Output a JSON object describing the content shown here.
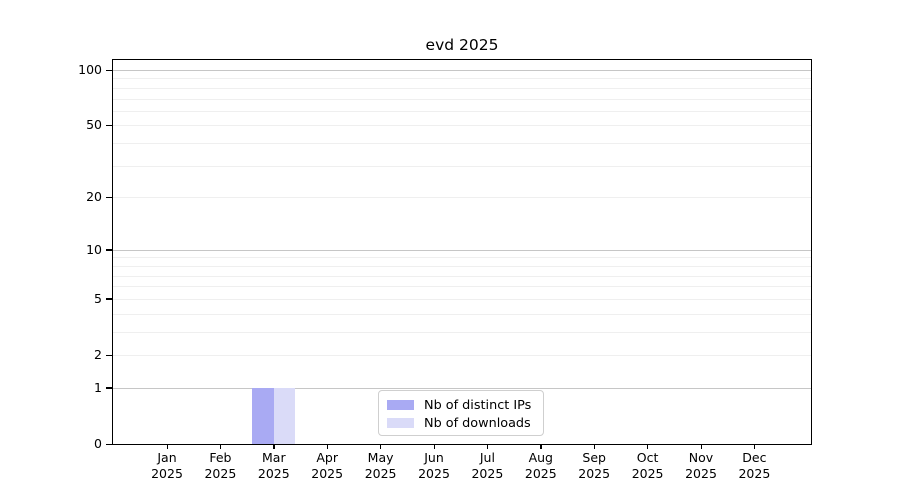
{
  "chart_data": {
    "type": "bar",
    "title": "evd 2025",
    "categories": [
      "Jan 2025",
      "Feb 2025",
      "Mar 2025",
      "Apr 2025",
      "May 2025",
      "Jun 2025",
      "Jul 2025",
      "Aug 2025",
      "Sep 2025",
      "Oct 2025",
      "Nov 2025",
      "Dec 2025"
    ],
    "series": [
      {
        "name": "Nb of distinct IPs",
        "color": "#a9aaf3",
        "values": [
          0,
          0,
          1,
          0,
          0,
          0,
          0,
          0,
          0,
          0,
          0,
          0
        ]
      },
      {
        "name": "Nb of downloads",
        "color": "#dadbf8",
        "values": [
          0,
          0,
          1,
          0,
          0,
          0,
          0,
          0,
          0,
          0,
          0,
          0
        ]
      }
    ],
    "xlabel": "",
    "ylabel": "",
    "yscale": "log1p",
    "yticks": [
      100,
      50,
      20,
      10,
      5,
      2,
      1,
      0
    ],
    "ylim": [
      0,
      113
    ],
    "grid": "horizontal",
    "grid_major_values": [
      100,
      10,
      1
    ],
    "grid_minor_values": [
      90,
      80,
      70,
      60,
      50,
      40,
      30,
      20,
      9,
      8,
      7,
      6,
      5,
      4,
      3,
      2
    ],
    "grid_major_color": "#c6c6c6",
    "grid_minor_color": "#efefef",
    "axis_color": "#000000",
    "legend": {
      "position": "lower center inside",
      "labels": [
        "Nb of distinct IPs",
        "Nb of downloads"
      ]
    }
  }
}
